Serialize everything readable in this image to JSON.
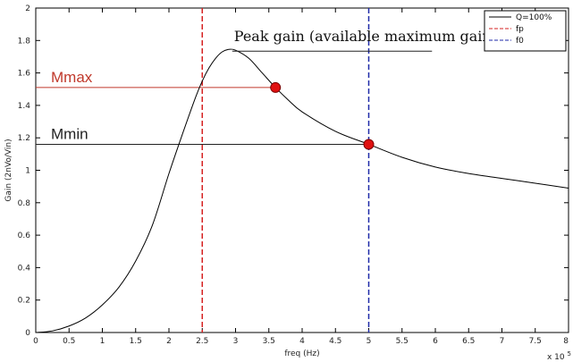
{
  "chart_data": {
    "type": "line",
    "xlabel": "freq (Hz)",
    "ylabel": "Gain (2nVo/Vin)",
    "x_multiplier_label": "x 10",
    "x_multiplier_exp": "5",
    "xlim": [
      0,
      8
    ],
    "ylim": [
      0,
      2
    ],
    "xticks": [
      "0",
      "0.5",
      "1",
      "1.5",
      "2",
      "2.5",
      "3",
      "3.5",
      "4",
      "4.5",
      "5",
      "5.5",
      "6",
      "6.5",
      "7",
      "7.5",
      "8"
    ],
    "yticks": [
      "0",
      "0.2",
      "0.4",
      "0.6",
      "0.8",
      "1",
      "1.2",
      "1.4",
      "1.6",
      "1.8",
      "2"
    ],
    "grid": false,
    "legend_position": "top-right",
    "legend": [
      {
        "label": "Q=100%",
        "color": "#000000",
        "style": "solid"
      },
      {
        "label": "fp",
        "color": "#d62222",
        "style": "dashed"
      },
      {
        "label": "f0",
        "color": "#1f2aa8",
        "style": "dashed"
      }
    ],
    "series": [
      {
        "color": "#000000",
        "x": [
          0,
          0.25,
          0.5,
          0.75,
          1.0,
          1.25,
          1.5,
          1.75,
          2.0,
          2.2,
          2.4,
          2.5,
          2.6,
          2.7,
          2.8,
          2.9,
          3.0,
          3.2,
          3.4,
          3.6,
          3.8,
          4.0,
          4.5,
          5.0,
          5.5,
          6.0,
          6.5,
          7.0,
          7.5,
          8.0
        ],
        "y": [
          0,
          0.01,
          0.04,
          0.09,
          0.17,
          0.28,
          0.44,
          0.66,
          0.98,
          1.22,
          1.45,
          1.55,
          1.63,
          1.69,
          1.73,
          1.745,
          1.74,
          1.69,
          1.6,
          1.51,
          1.43,
          1.36,
          1.24,
          1.16,
          1.08,
          1.02,
          0.98,
          0.95,
          0.92,
          0.89
        ]
      }
    ],
    "vlines": [
      {
        "x": 2.5,
        "color": "#d62222",
        "style": "dashed"
      },
      {
        "x": 5.0,
        "color": "#1f2aa8",
        "style": "dashed"
      }
    ],
    "hlines": [
      {
        "y": 1.51,
        "x_end": 3.6,
        "color": "#c0392b",
        "label": "Mmax"
      },
      {
        "y": 1.16,
        "x_end": 5.0,
        "color": "#222222",
        "label": "Mmin"
      }
    ],
    "markers": [
      {
        "x": 3.6,
        "y": 1.51,
        "color": "#e01010"
      },
      {
        "x": 5.0,
        "y": 1.16,
        "color": "#e01010"
      }
    ],
    "peak_annotation": {
      "text": "Peak gain (available maximum gain)",
      "x_start": 2.95,
      "x_end": 5.95,
      "y": 1.74
    }
  }
}
